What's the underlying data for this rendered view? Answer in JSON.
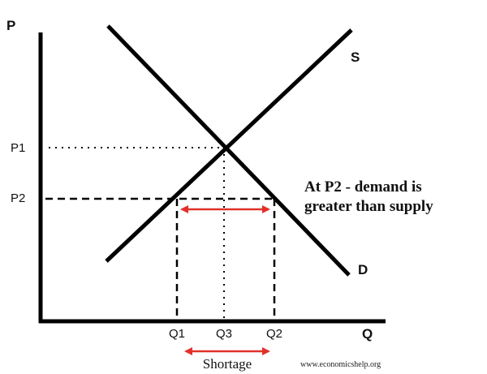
{
  "axes": {
    "y_label": "P",
    "x_label": "Q"
  },
  "curves": {
    "supply_label": "S",
    "demand_label": "D"
  },
  "price_ticks": {
    "p1": "P1",
    "p2": "P2"
  },
  "quantity_ticks": {
    "q1": "Q1",
    "q3": "Q3",
    "q2": "Q2"
  },
  "annotation": {
    "line1": "At P2 - demand is",
    "line2": "greater than supply"
  },
  "shortage_label": "Shortage",
  "watermark": "www.economicshelp.org",
  "colors": {
    "line": "#000000",
    "arrow": "#e0312a"
  }
}
